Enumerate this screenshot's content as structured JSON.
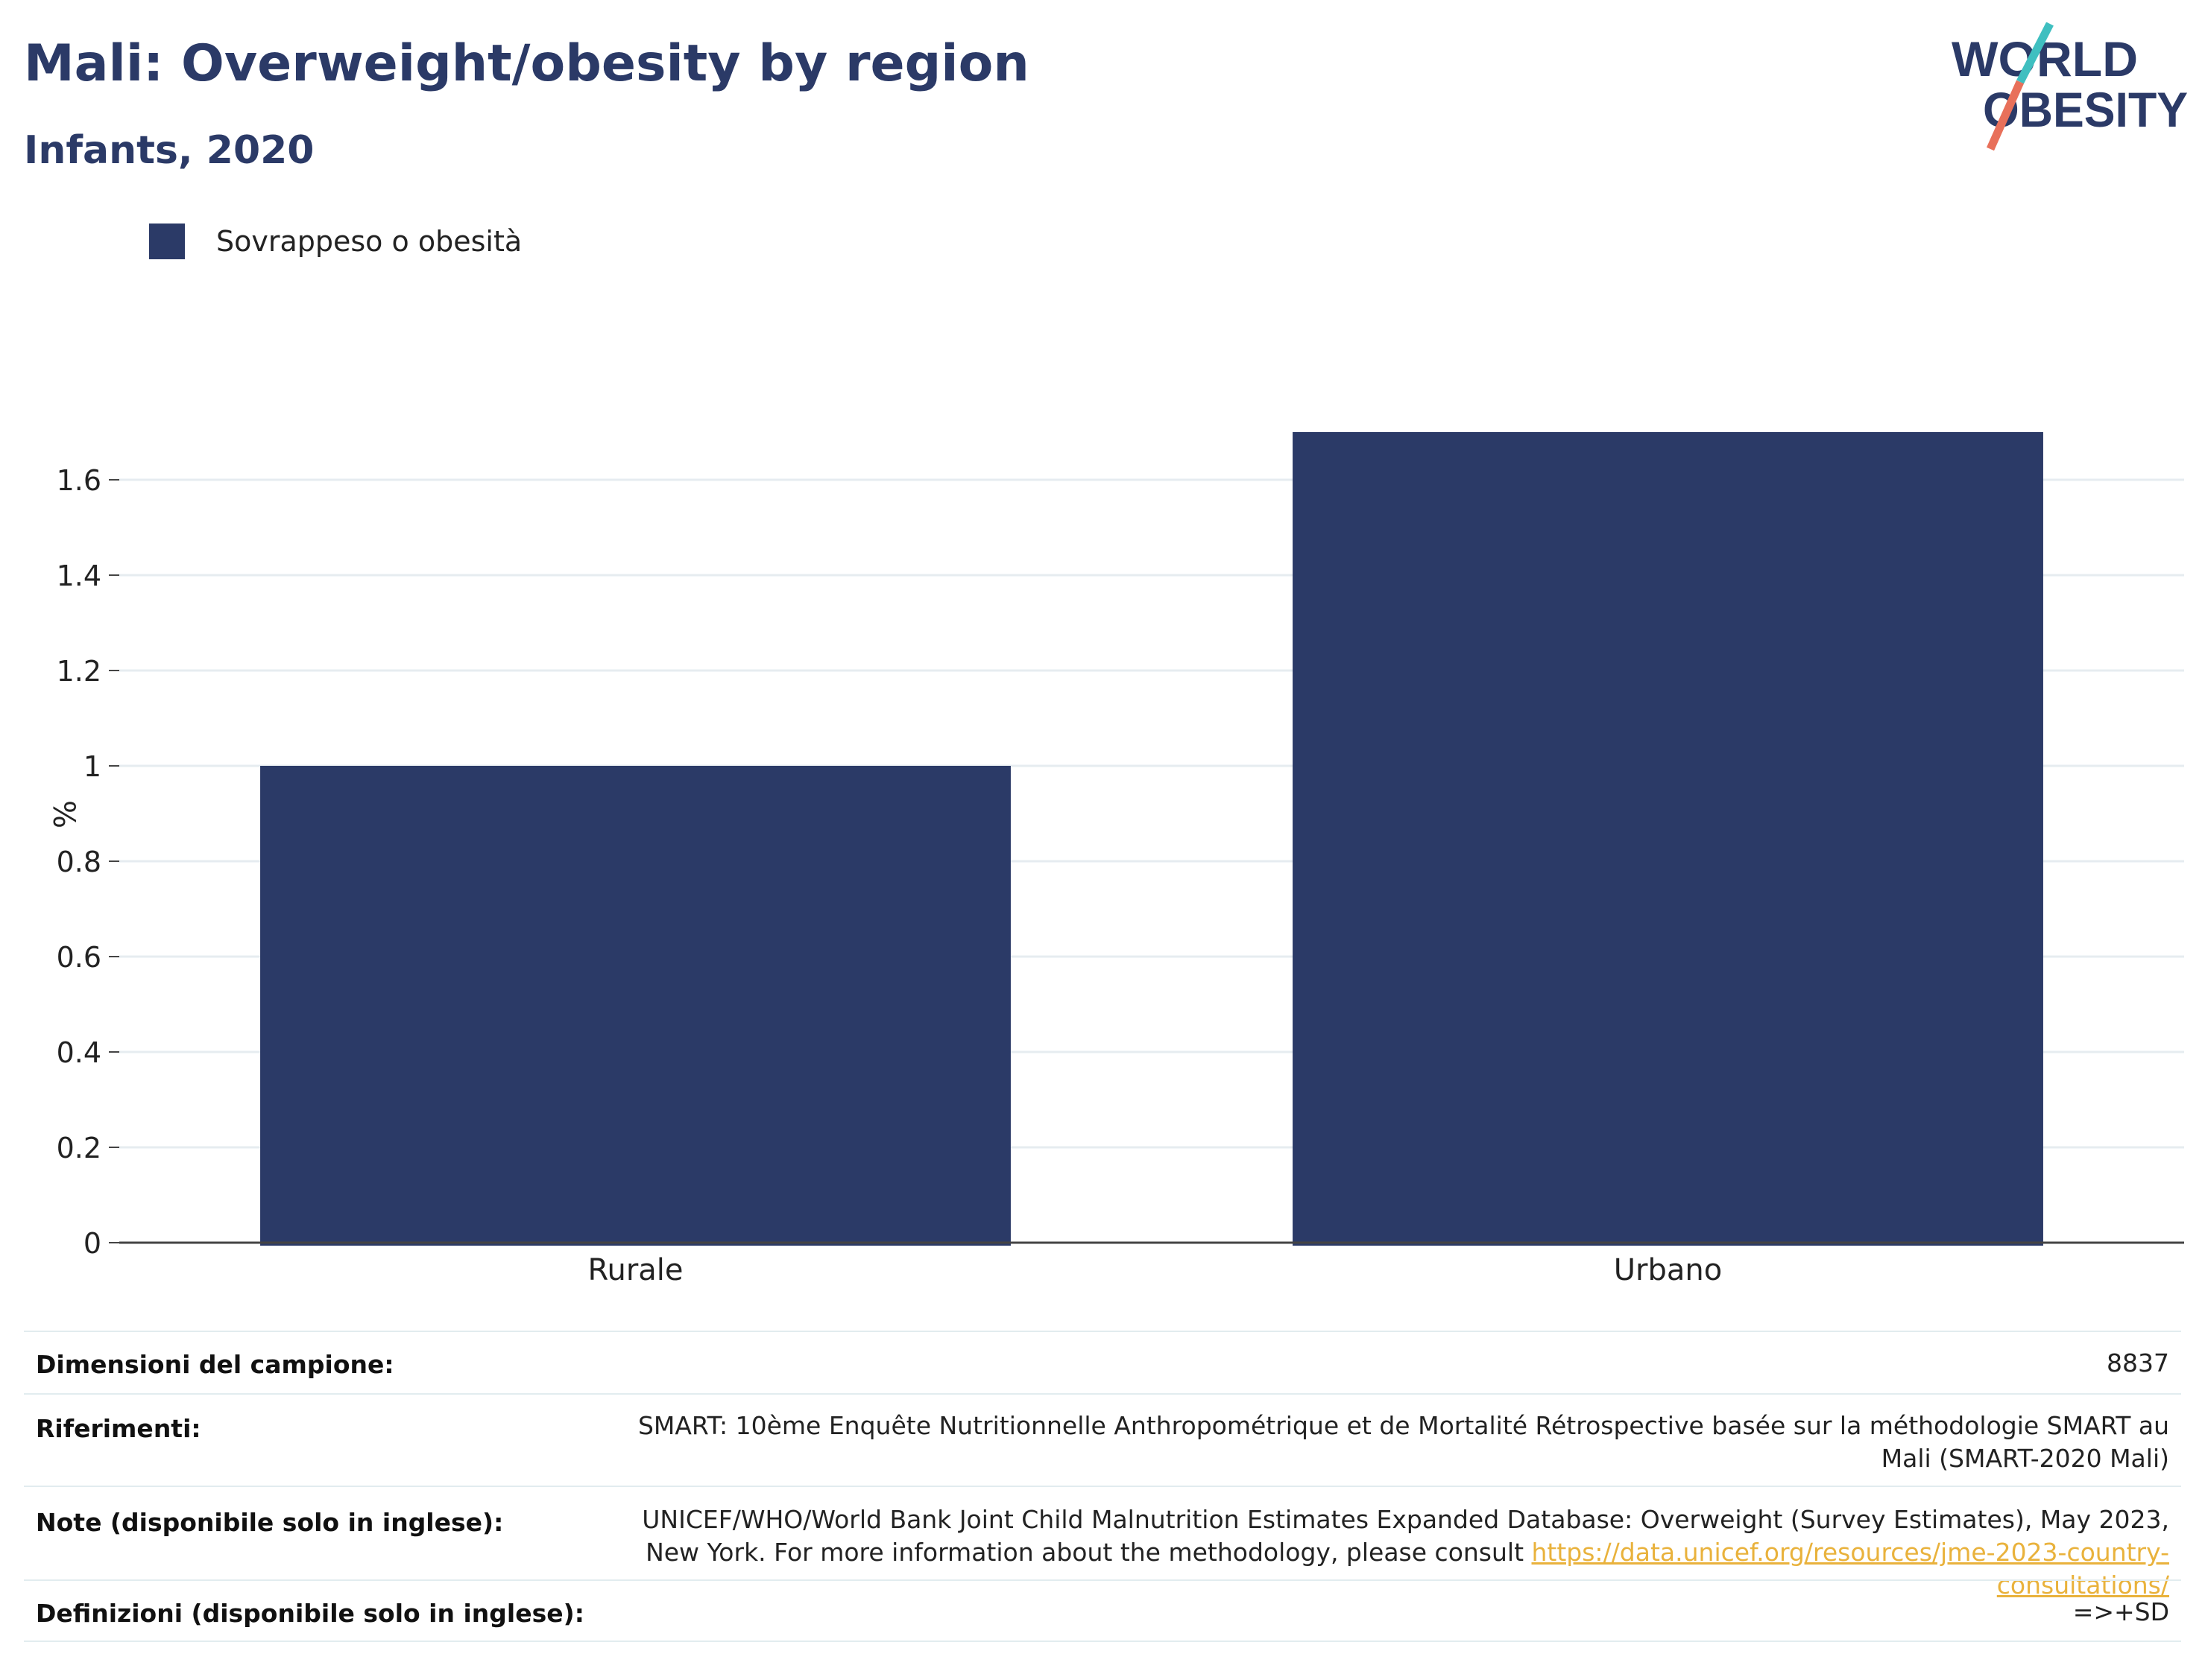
{
  "header": {
    "title": "Mali: Overweight/obesity by region",
    "subtitle": "Infants, 2020"
  },
  "logo": {
    "line1": "WORLD",
    "line2": "OBESITY",
    "colors": {
      "text": "#2b3a67",
      "slash_top": "#3fbfc0",
      "slash_bottom": "#e8705a"
    }
  },
  "colors": {
    "bar": "#2b3a67",
    "grid": "#e6ecf0",
    "axis": "#444444",
    "link": "#e9b23c"
  },
  "chart_data": {
    "type": "bar",
    "title": "Mali: Overweight/obesity by region",
    "subtitle": "Infants, 2020",
    "categories": [
      "Rurale",
      "Urbano"
    ],
    "series": [
      {
        "name": "Sovrappeso o obesità",
        "values": [
          1.0,
          1.7
        ]
      }
    ],
    "xlabel": "",
    "ylabel": "%",
    "ylim": [
      0,
      1.75
    ],
    "yticks": [
      0,
      0.2,
      0.4,
      0.6,
      0.8,
      1,
      1.2,
      1.4,
      1.6
    ],
    "ytick_labels": [
      "0",
      "0.2",
      "0.4",
      "0.6",
      "0.8",
      "1",
      "1.2",
      "1.4",
      "1.6"
    ],
    "grid": true,
    "legend_position": "top-left"
  },
  "info": {
    "sample_size": {
      "label": "Dimensioni del campione:",
      "value": "8837"
    },
    "references": {
      "label": "Riferimenti:",
      "value": "SMART: 10ème Enquête Nutritionnelle Anthropométrique et de Mortalité Rétrospective basée sur la méthodologie SMART au Mali (SMART-2020 Mali)"
    },
    "notes": {
      "label": "Note (disponibile solo in inglese):",
      "text": "UNICEF/WHO/World Bank Joint Child Malnutrition Estimates Expanded Database: Overweight (Survey Estimates), May 2023, New York. For more information about the methodology, please consult ",
      "link": "https://data.unicef.org/resources/jme-2023-country-consultations/"
    },
    "definitions": {
      "label": "Definizioni (disponibile solo in inglese):",
      "value": "=>+SD"
    }
  }
}
